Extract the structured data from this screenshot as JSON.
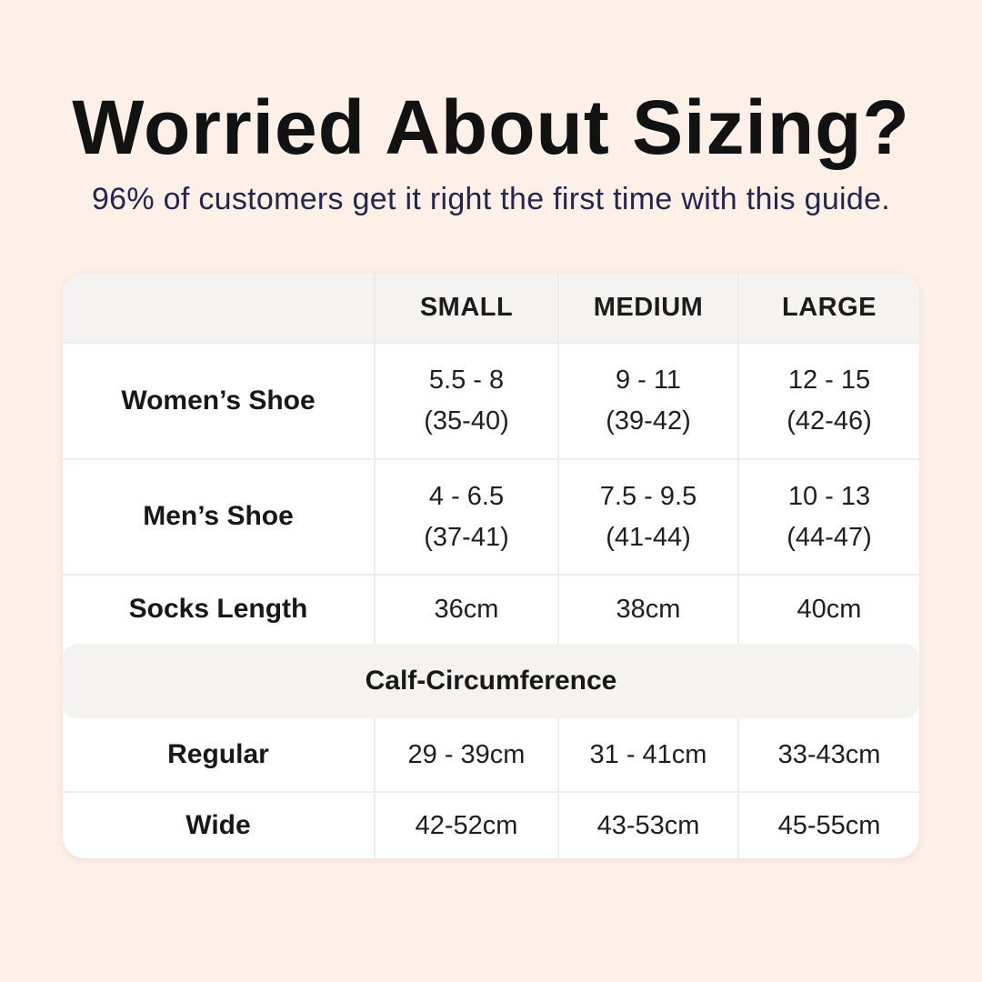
{
  "colors": {
    "background": "#fcf0e9",
    "title_text": "#121212",
    "subtitle_text": "#26264a",
    "table_background": "#ffffff",
    "header_band_background": "#f4f3f1",
    "grid_line": "#ececea",
    "body_text": "#1f1f1f"
  },
  "header": {
    "title": "Worried About Sizing?",
    "subtitle": "96% of customers get it right the first time with this guide."
  },
  "table": {
    "columns": [
      "",
      "SMALL",
      "MEDIUM",
      "LARGE"
    ],
    "rows": [
      {
        "label": "Women’s Shoe",
        "cells": [
          [
            "5.5 - 8",
            "(35-40)"
          ],
          [
            "9 - 11",
            "(39-42)"
          ],
          [
            "12 - 15",
            "(42-46)"
          ]
        ]
      },
      {
        "label": "Men’s Shoe",
        "cells": [
          [
            "4 - 6.5",
            "(37-41)"
          ],
          [
            "7.5 - 9.5",
            "(41-44)"
          ],
          [
            "10 - 13",
            "(44-47)"
          ]
        ]
      },
      {
        "label": "Socks Length",
        "cells": [
          [
            "36cm"
          ],
          [
            "38cm"
          ],
          [
            "40cm"
          ]
        ]
      }
    ],
    "section_header": "Calf-Circumference",
    "section_rows": [
      {
        "label": "Regular",
        "cells": [
          [
            "29 - 39cm"
          ],
          [
            "31 - 41cm"
          ],
          [
            "33-43cm"
          ]
        ]
      },
      {
        "label": "Wide",
        "cells": [
          [
            "42-52cm"
          ],
          [
            "43-53cm"
          ],
          [
            "45-55cm"
          ]
        ]
      }
    ]
  }
}
